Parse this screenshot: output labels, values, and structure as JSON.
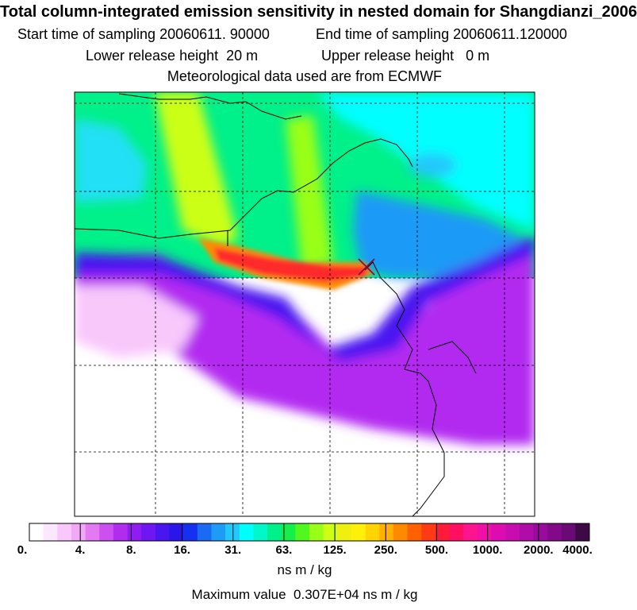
{
  "header": {
    "title": "Total column-integrated emission sensitivity in nested domain for Shangdianzi_2006",
    "start_label": "Start time of sampling",
    "start_value": "20060611. 90000",
    "end_label": "End time of sampling",
    "end_value": "20060611.120000",
    "lower_label": "Lower release height",
    "lower_value": "20 m",
    "upper_label": "Upper release height",
    "upper_value": "0 m",
    "met_line": "Meteorological data used are from ECMWF"
  },
  "map": {
    "receptor_marker": "receptor-cross-icon",
    "colors": {
      "land_clean": "#ffffff",
      "high_plume": "#ff2a2a",
      "coast_line": "#000000"
    }
  },
  "legend": {
    "colors": [
      "#ffffff",
      "#fde7fe",
      "#f8c8fb",
      "#f1a8f7",
      "#e27af2",
      "#cc4ff0",
      "#b22cf0",
      "#8f1cf0",
      "#6e17f2",
      "#4a16f0",
      "#2a16e8",
      "#1630f0",
      "#1a6af4",
      "#1e9af7",
      "#22c8fb",
      "#00ffff",
      "#00f8c8",
      "#00f08a",
      "#16ee4a",
      "#50f81e",
      "#9aff16",
      "#ccff14",
      "#f0f010",
      "#fff00a",
      "#ffd400",
      "#ffb000",
      "#ff8a00",
      "#ff6000",
      "#ff3a14",
      "#ff1a3a",
      "#ff0e62",
      "#ff1490",
      "#f010a8",
      "#dc0cb0",
      "#c80cb0",
      "#b00ca8",
      "#9a0a9c",
      "#820a88",
      "#6a0a74",
      "#3e0a46"
    ],
    "tick_labels": [
      "0.",
      "4.",
      "8.",
      "16.",
      "31.",
      "63.",
      "125.",
      "250.",
      "500.",
      "1000.",
      "2000.",
      "4000."
    ],
    "unit": "ns m / kg"
  },
  "footer": {
    "max_label": "Maximum value",
    "max_value": "0.307E+04",
    "max_unit": "ns m / kg"
  }
}
